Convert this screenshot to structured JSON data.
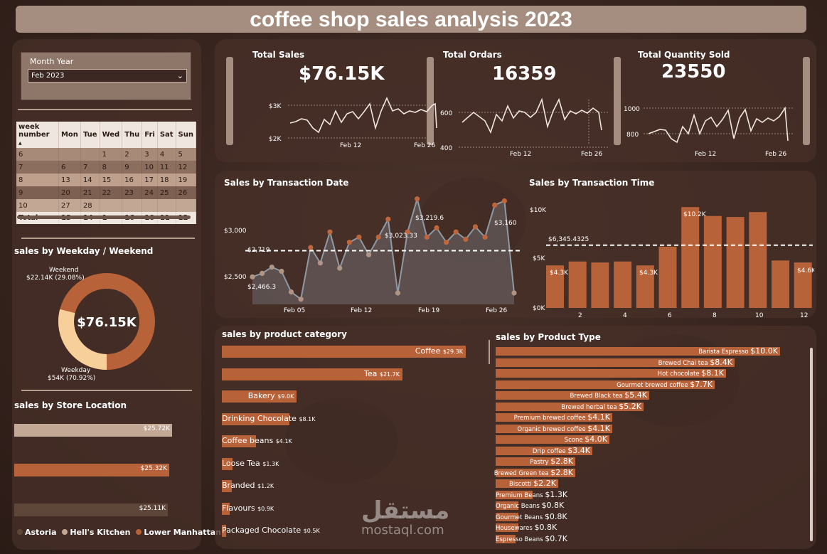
{
  "title": "coffee shop sales analysis 2023",
  "slicer": {
    "label": "Month Year",
    "value": "Feb 2023"
  },
  "kpis": [
    {
      "label": "Total Sales",
      "value": "$76.15K",
      "ymax": "$3K",
      "ymin": "$2K",
      "x1": "Feb 12",
      "x2": "Feb 26"
    },
    {
      "label": "Total Ordars",
      "value": "16359",
      "ymax": "600",
      "ymin": "400",
      "x1": "Feb 12",
      "x2": "Feb 26"
    },
    {
      "label": "Total Quantity Sold",
      "value": "23550",
      "ymax": "1000",
      "ymin": "800",
      "x1": "Feb 12",
      "x2": "Feb 26"
    }
  ],
  "calendar": {
    "headers": [
      "week number",
      "Mon",
      "Tue",
      "Wed",
      "Thu",
      "Fri",
      "Sat",
      "Sun"
    ],
    "rows": [
      [
        "6",
        "",
        "",
        "1",
        "2",
        "3",
        "4",
        "5"
      ],
      [
        "7",
        "6",
        "7",
        "8",
        "9",
        "10",
        "11",
        "12"
      ],
      [
        "8",
        "13",
        "14",
        "15",
        "16",
        "17",
        "18",
        "19"
      ],
      [
        "9",
        "20",
        "21",
        "22",
        "23",
        "24",
        "25",
        "26"
      ],
      [
        "10",
        "27",
        "28",
        "",
        "",
        "",
        "",
        ""
      ]
    ],
    "total": [
      "Total",
      "13",
      "14",
      "1",
      "16",
      "10",
      "11",
      "12"
    ]
  },
  "weekday": {
    "title": "sales by Weekday / Weekend",
    "center": "$76.15K",
    "weekend_label": "Weekend",
    "weekend_value": "$22.14K (29.08%)",
    "weekday_label": "Weekday",
    "weekday_value": "$54K (70.92%)",
    "colors": {
      "weekend": "#f7cf9b",
      "weekday": "#b86239"
    }
  },
  "store": {
    "title": "sales by Store Location",
    "bars": [
      {
        "name": "Astoria",
        "label": "$25.72K",
        "value": 25.72,
        "color": "#c4a896"
      },
      {
        "name": "Hell's Kitchen",
        "label": "$25.32K",
        "value": 25.32,
        "color": "#b86239"
      },
      {
        "name": "Lower Manhattan",
        "label": "$25.11K",
        "value": 25.11,
        "color": "#5e4638"
      }
    ],
    "legend_colors": [
      "#5e4638",
      "#c4a896",
      "#b86239"
    ]
  },
  "by_date": {
    "title": "Sales by Transaction Date",
    "y_ticks": [
      "$3,000",
      "$2,500"
    ],
    "x_ticks": [
      "Feb 05",
      "Feb 12",
      "Feb 19",
      "Feb 26"
    ],
    "avg_label": "$2,719",
    "labels": [
      "$2,466.3",
      "$3,023.33",
      "$3,219.6",
      "$3,160"
    ]
  },
  "by_time": {
    "title": "Sales by Transaction Time",
    "y_ticks": [
      "$10K",
      "$5K",
      "$0K"
    ],
    "x_ticks": [
      "2",
      "4",
      "6",
      "8",
      "10",
      "12"
    ],
    "avg_label": "$6,345.4325",
    "labels": [
      "$4.3K",
      "$4.3K",
      "$10.2K",
      "$4.6K"
    ]
  },
  "category": {
    "title": "sales by product category",
    "items": [
      {
        "name": "Coffee",
        "value": "$29.3K",
        "v": 29.3
      },
      {
        "name": "Tea",
        "value": "$21.7K",
        "v": 21.7
      },
      {
        "name": "Bakery",
        "value": "$9.0K",
        "v": 9.0
      },
      {
        "name": "Drinking Chocolate",
        "value": "$8.1K",
        "v": 8.1
      },
      {
        "name": "Coffee beans",
        "value": "$4.1K",
        "v": 4.1
      },
      {
        "name": "Loose Tea",
        "value": "$1.3K",
        "v": 1.3
      },
      {
        "name": "Branded",
        "value": "$1.2K",
        "v": 1.2
      },
      {
        "name": "Flavours",
        "value": "$0.9K",
        "v": 0.9
      },
      {
        "name": "Packaged Chocolate",
        "value": "$0.5K",
        "v": 0.5
      }
    ]
  },
  "product_type": {
    "title": "sales by Product Type",
    "items": [
      {
        "name": "Barista Espresso",
        "value": "$10.0K",
        "v": 10.0
      },
      {
        "name": "Brewed Chai tea",
        "value": "$8.4K",
        "v": 8.4
      },
      {
        "name": "Hot chocolate",
        "value": "$8.1K",
        "v": 8.1
      },
      {
        "name": "Gourmet brewed coffee",
        "value": "$7.7K",
        "v": 7.7
      },
      {
        "name": "Brewed Black tea",
        "value": "$5.4K",
        "v": 5.4
      },
      {
        "name": "Brewed herbal tea",
        "value": "$5.2K",
        "v": 5.2
      },
      {
        "name": "Premium brewed coffee",
        "value": "$4.1K",
        "v": 4.1
      },
      {
        "name": "Organic brewed coffee",
        "value": "$4.1K",
        "v": 4.1
      },
      {
        "name": "Scone",
        "value": "$4.0K",
        "v": 4.0
      },
      {
        "name": "Drip coffee",
        "value": "$3.4K",
        "v": 3.4
      },
      {
        "name": "Pastry",
        "value": "$2.8K",
        "v": 2.8
      },
      {
        "name": "Brewed Green tea",
        "value": "$2.8K",
        "v": 2.8
      },
      {
        "name": "Biscotti",
        "value": "$2.2K",
        "v": 2.2
      },
      {
        "name": "Premium Beans",
        "value": "$1.3K",
        "v": 1.3
      },
      {
        "name": "Organic Beans",
        "value": "$0.8K",
        "v": 0.8
      },
      {
        "name": "Gourmet Beans",
        "value": "$0.8K",
        "v": 0.8
      },
      {
        "name": "Housewares",
        "value": "$0.8K",
        "v": 0.8
      },
      {
        "name": "Espresso Beans",
        "value": "$0.7K",
        "v": 0.7
      }
    ]
  },
  "chart_data": [
    {
      "type": "line",
      "title": "Sales by Transaction Date",
      "x": [
        "Feb 01",
        "Feb 02",
        "Feb 03",
        "Feb 04",
        "Feb 05",
        "Feb 06",
        "Feb 07",
        "Feb 08",
        "Feb 09",
        "Feb 10",
        "Feb 11",
        "Feb 12",
        "Feb 13",
        "Feb 14",
        "Feb 15",
        "Feb 16",
        "Feb 17",
        "Feb 18",
        "Feb 19",
        "Feb 20",
        "Feb 21",
        "Feb 22",
        "Feb 23",
        "Feb 24",
        "Feb 25",
        "Feb 26",
        "Feb 27",
        "Feb 28"
      ],
      "values": [
        2466.3,
        2500,
        2560,
        2520,
        2320,
        2250,
        2750,
        2600,
        2900,
        2550,
        2800,
        2850,
        2680,
        2850,
        3023.33,
        2310,
        2900,
        3219.6,
        2850,
        2940,
        2800,
        2900,
        2830,
        2950,
        2850,
        3160,
        3200,
        2310
      ],
      "average": 2719,
      "ylim": [
        2200,
        3300
      ]
    },
    {
      "type": "bar",
      "title": "Sales by Transaction Time",
      "categories": [
        "1",
        "2",
        "3",
        "4",
        "5",
        "6",
        "7",
        "8",
        "9",
        "10",
        "11",
        "12"
      ],
      "values": [
        4.3,
        4.7,
        4.6,
        4.7,
        4.3,
        6.2,
        10.2,
        9.3,
        9.2,
        9.7,
        4.8,
        4.6
      ],
      "average": 6.3454325,
      "ylim": [
        0,
        10
      ]
    }
  ]
}
